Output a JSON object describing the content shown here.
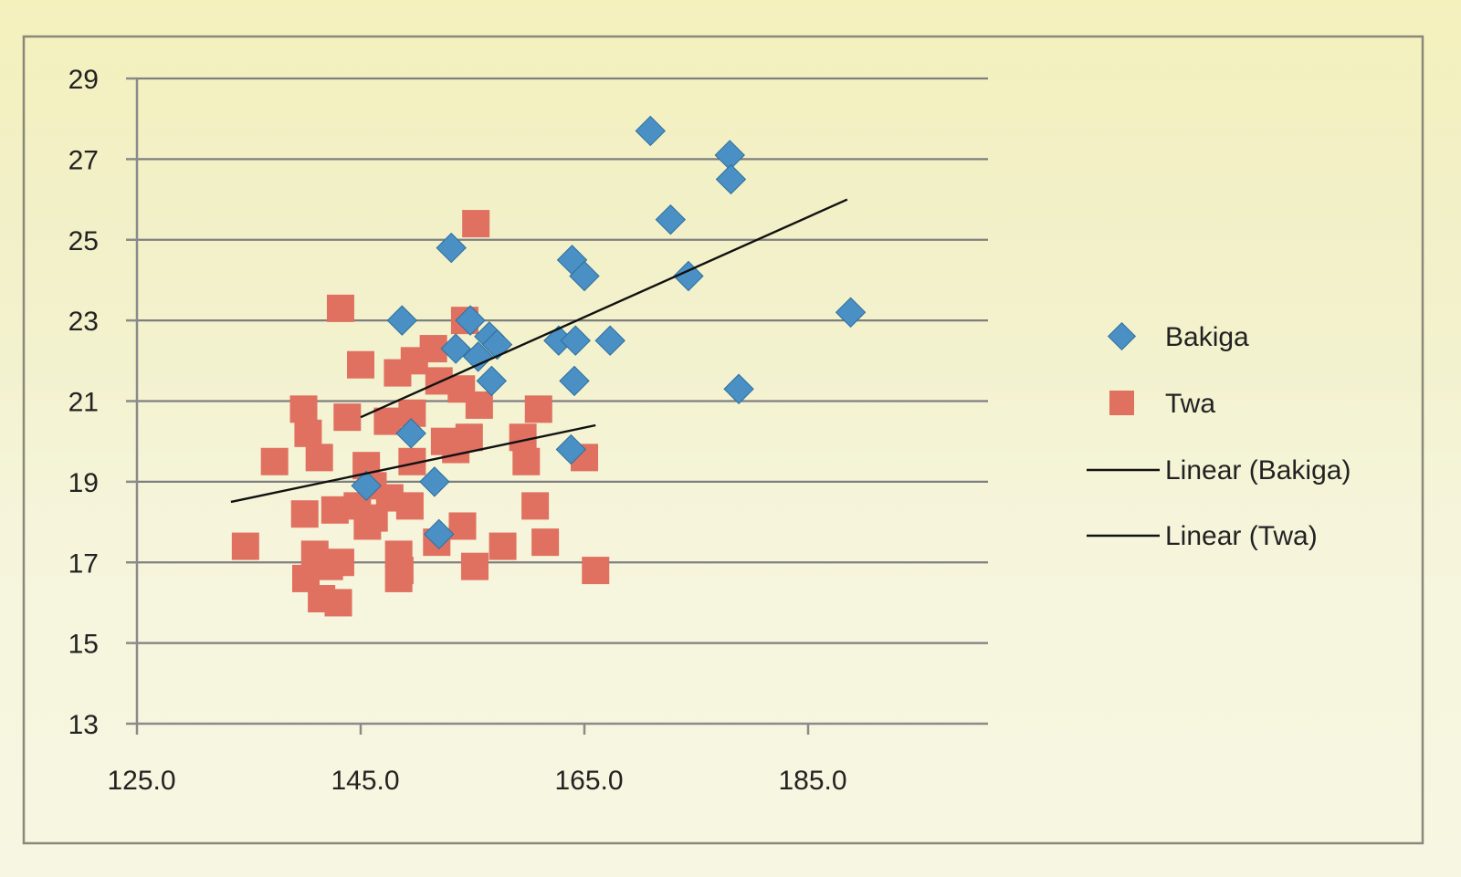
{
  "chart_data": {
    "type": "scatter",
    "title": "",
    "xlabel": "",
    "ylabel": "",
    "xlim": [
      125,
      200
    ],
    "ylim": [
      13,
      29
    ],
    "x_ticks": [
      "125.0",
      "145.0",
      "165.0",
      "185.0"
    ],
    "x_tick_values": [
      125,
      145,
      165,
      185
    ],
    "y_ticks": [
      "13",
      "15",
      "17",
      "19",
      "21",
      "23",
      "25",
      "27",
      "29"
    ],
    "y_tick_values": [
      13,
      15,
      17,
      19,
      21,
      23,
      25,
      27,
      29
    ],
    "grid": "horizontal",
    "legend_position": "right",
    "series": [
      {
        "name": "Bakiga",
        "marker": "diamond",
        "color": "#4a90c4",
        "points": [
          [
            170.9,
            27.7
          ],
          [
            178.0,
            27.1
          ],
          [
            178.1,
            26.5
          ],
          [
            172.7,
            25.5
          ],
          [
            153.1,
            24.8
          ],
          [
            163.9,
            24.5
          ],
          [
            165.0,
            24.1
          ],
          [
            174.3,
            24.1
          ],
          [
            188.8,
            23.2
          ],
          [
            148.7,
            23.0
          ],
          [
            154.8,
            23.0
          ],
          [
            156.5,
            22.6
          ],
          [
            157.2,
            22.4
          ],
          [
            162.7,
            22.5
          ],
          [
            164.2,
            22.5
          ],
          [
            167.3,
            22.5
          ],
          [
            153.5,
            22.3
          ],
          [
            155.5,
            22.1
          ],
          [
            156.7,
            21.5
          ],
          [
            164.1,
            21.5
          ],
          [
            178.8,
            21.3
          ],
          [
            149.5,
            20.2
          ],
          [
            163.8,
            19.8
          ],
          [
            151.6,
            19.0
          ],
          [
            145.5,
            18.9
          ],
          [
            152.0,
            17.7
          ]
        ]
      },
      {
        "name": "Twa",
        "marker": "square",
        "color": "#e07060",
        "points": [
          [
            155.3,
            25.4
          ],
          [
            143.2,
            23.3
          ],
          [
            154.3,
            23.0
          ],
          [
            151.5,
            22.3
          ],
          [
            145.0,
            21.9
          ],
          [
            149.8,
            22.0
          ],
          [
            148.3,
            21.7
          ],
          [
            152.0,
            21.5
          ],
          [
            154.0,
            21.3
          ],
          [
            155.6,
            20.9
          ],
          [
            159.5,
            20.1
          ],
          [
            139.9,
            20.8
          ],
          [
            143.8,
            20.6
          ],
          [
            147.4,
            20.5
          ],
          [
            149.6,
            20.7
          ],
          [
            160.9,
            20.8
          ],
          [
            140.3,
            20.2
          ],
          [
            152.5,
            20.0
          ],
          [
            154.7,
            20.1
          ],
          [
            141.3,
            19.6
          ],
          [
            137.3,
            19.5
          ],
          [
            145.5,
            19.4
          ],
          [
            149.6,
            19.5
          ],
          [
            153.5,
            19.8
          ],
          [
            159.8,
            19.5
          ],
          [
            165.0,
            19.6
          ],
          [
            146.1,
            18.9
          ],
          [
            147.6,
            18.6
          ],
          [
            140.0,
            18.2
          ],
          [
            142.7,
            18.3
          ],
          [
            144.7,
            18.4
          ],
          [
            146.2,
            18.1
          ],
          [
            149.4,
            18.4
          ],
          [
            160.6,
            18.4
          ],
          [
            145.6,
            17.9
          ],
          [
            154.1,
            17.9
          ],
          [
            151.8,
            17.5
          ],
          [
            157.7,
            17.4
          ],
          [
            161.5,
            17.5
          ],
          [
            134.7,
            17.4
          ],
          [
            140.9,
            17.2
          ],
          [
            143.2,
            17.0
          ],
          [
            148.4,
            17.2
          ],
          [
            142.2,
            16.9
          ],
          [
            148.5,
            16.8
          ],
          [
            155.2,
            16.9
          ],
          [
            166.0,
            16.8
          ],
          [
            140.1,
            16.6
          ],
          [
            148.4,
            16.6
          ],
          [
            141.5,
            16.1
          ],
          [
            143.0,
            16.0
          ]
        ]
      }
    ],
    "trendlines": [
      {
        "name": "Linear (Bakiga)",
        "x": [
          145.0,
          188.5
        ],
        "y": [
          20.6,
          26.0
        ]
      },
      {
        "name": "Linear (Twa)",
        "x": [
          133.4,
          166.0
        ],
        "y": [
          18.5,
          20.4
        ]
      }
    ],
    "legend": [
      {
        "label": "Bakiga",
        "marker": "diamond"
      },
      {
        "label": "Twa",
        "marker": "square"
      },
      {
        "label": "Linear (Bakiga)",
        "marker": "line"
      },
      {
        "label": "Linear (Twa)",
        "marker": "line"
      }
    ]
  }
}
